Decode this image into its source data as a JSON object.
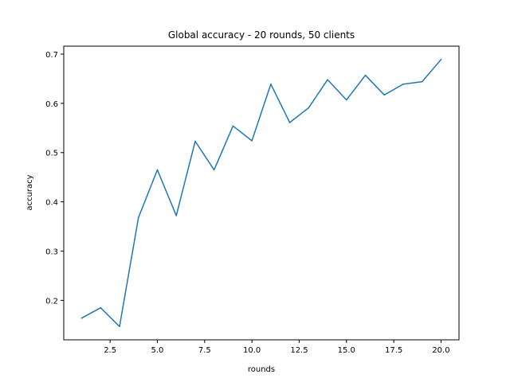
{
  "chart_data": {
    "type": "line",
    "title": "Global accuracy - 20 rounds, 50 clients",
    "xlabel": "rounds",
    "ylabel": "accuracy",
    "x": [
      1,
      2,
      3,
      4,
      5,
      6,
      7,
      8,
      9,
      10,
      11,
      12,
      13,
      14,
      15,
      16,
      17,
      18,
      19,
      20
    ],
    "series": [
      {
        "values": [
          0.164,
          0.185,
          0.147,
          0.368,
          0.465,
          0.372,
          0.523,
          0.465,
          0.554,
          0.524,
          0.639,
          0.561,
          0.591,
          0.648,
          0.607,
          0.657,
          0.617,
          0.639,
          0.644,
          0.689
        ],
        "color": "#1f77b4"
      }
    ],
    "xlim": [
      0.05,
      20.95
    ],
    "ylim": [
      0.1199,
      0.7161
    ],
    "xticks": [
      2.5,
      5.0,
      7.5,
      10.0,
      12.5,
      15.0,
      17.5,
      20.0
    ],
    "xtick_labels": [
      "2.5",
      "5.0",
      "7.5",
      "10.0",
      "12.5",
      "15.0",
      "17.5",
      "20.0"
    ],
    "yticks": [
      0.2,
      0.3,
      0.4,
      0.5,
      0.6,
      0.7
    ],
    "ytick_labels": [
      "0.2",
      "0.3",
      "0.4",
      "0.5",
      "0.6",
      "0.7"
    ],
    "grid": false,
    "legend": "none"
  }
}
